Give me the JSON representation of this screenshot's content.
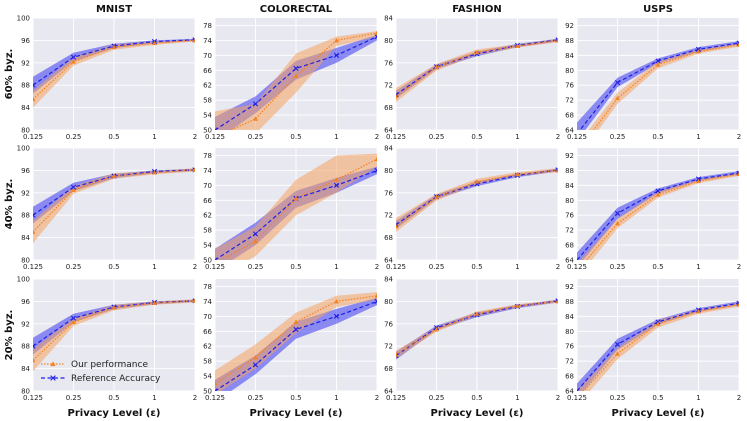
{
  "chart_data": {
    "type": "line",
    "column_titles": [
      "MNIST",
      "COLORECTAL",
      "FASHION",
      "USPS"
    ],
    "row_labels": [
      "60% byz.",
      "40% byz.",
      "20% byz."
    ],
    "xlabel": "Privacy Level (ε)",
    "x_ticks": [
      "0.125",
      "0.25",
      "0.5",
      "1",
      "2"
    ],
    "y_ticks": {
      "MNIST": [
        "80",
        "84",
        "88",
        "92",
        "96",
        "100"
      ],
      "COLORECTAL": [
        "50",
        "54",
        "58",
        "62",
        "66",
        "70",
        "74",
        "78"
      ],
      "FASHION": [
        "64",
        "68",
        "72",
        "76",
        "80",
        "84"
      ],
      "USPS": [
        "64",
        "68",
        "72",
        "76",
        "80",
        "84",
        "88",
        "92"
      ]
    },
    "ylim": {
      "MNIST": [
        80,
        100
      ],
      "COLORECTAL": [
        50,
        80
      ],
      "FASHION": [
        64,
        84
      ],
      "USPS": [
        64,
        94
      ]
    },
    "legend": {
      "ours": "Our performance",
      "ref": "Reference Accuracy",
      "position": "lower-left"
    },
    "colors": {
      "ours": "#f5821f",
      "ours_band": "#f4a261",
      "ref": "#1f1fe6",
      "ref_band": "#3b3bf0",
      "panel_bg": "#e8e8f1",
      "grid": "#ffffff"
    },
    "panels": [
      {
        "row": "60% byz.",
        "dataset": "MNIST",
        "ours": [
          85.5,
          92.2,
          94.8,
          95.5,
          96.0
        ],
        "ours_lo": [
          84.0,
          91.5,
          94.3,
          95.2,
          95.8
        ],
        "ours_hi": [
          87.0,
          93.0,
          95.3,
          95.8,
          96.2
        ],
        "ref": [
          88.0,
          93.0,
          95.0,
          95.8,
          96.1
        ],
        "ref_lo": [
          86.5,
          92.3,
          94.6,
          95.5,
          95.9
        ],
        "ref_hi": [
          89.5,
          93.8,
          95.4,
          96.0,
          96.3
        ]
      },
      {
        "row": "60% byz.",
        "dataset": "COLORECTAL",
        "ours": [
          48.0,
          53.0,
          64.5,
          74.0,
          76.0
        ],
        "ours_lo": [
          44.0,
          49.0,
          60.0,
          72.5,
          75.0
        ],
        "ours_hi": [
          55.0,
          57.0,
          70.5,
          75.0,
          76.5
        ],
        "ref": [
          50.0,
          57.0,
          66.5,
          70.0,
          75.0
        ],
        "ref_lo": [
          47.0,
          54.5,
          63.5,
          68.0,
          74.0
        ],
        "ref_hi": [
          53.5,
          59.0,
          68.5,
          72.0,
          75.5
        ]
      },
      {
        "row": "60% byz.",
        "dataset": "FASHION",
        "ours": [
          70.0,
          75.2,
          77.9,
          79.0,
          80.0
        ],
        "ours_lo": [
          69.0,
          74.6,
          77.4,
          78.7,
          79.7
        ],
        "ours_hi": [
          71.5,
          75.8,
          78.4,
          79.3,
          80.3
        ],
        "ref": [
          70.3,
          75.3,
          77.6,
          79.1,
          80.1
        ],
        "ref_lo": [
          69.6,
          74.9,
          77.2,
          78.8,
          79.8
        ],
        "ref_hi": [
          71.0,
          75.7,
          78.0,
          79.4,
          80.3
        ]
      },
      {
        "row": "60% byz.",
        "dataset": "USPS",
        "ours": [
          58.0,
          72.5,
          81.5,
          85.0,
          86.8
        ],
        "ours_lo": [
          56.0,
          71.0,
          80.5,
          84.5,
          86.3
        ],
        "ours_hi": [
          60.0,
          74.0,
          82.5,
          85.5,
          87.2
        ],
        "ref": [
          63.0,
          76.7,
          82.5,
          85.6,
          87.3
        ],
        "ref_lo": [
          61.0,
          75.5,
          81.8,
          85.0,
          86.9
        ],
        "ref_hi": [
          66.0,
          78.0,
          83.2,
          86.2,
          87.8
        ]
      },
      {
        "row": "40% byz.",
        "dataset": "MNIST",
        "ours": [
          85.0,
          92.5,
          95.0,
          95.6,
          96.1
        ],
        "ours_lo": [
          83.0,
          91.8,
          94.5,
          95.3,
          95.8
        ],
        "ours_hi": [
          87.0,
          93.2,
          95.5,
          95.9,
          96.4
        ],
        "ref": [
          88.0,
          93.0,
          95.0,
          95.8,
          96.1
        ],
        "ref_lo": [
          86.5,
          92.3,
          94.6,
          95.5,
          95.9
        ],
        "ref_hi": [
          89.5,
          93.8,
          95.4,
          96.0,
          96.3
        ]
      },
      {
        "row": "40% byz.",
        "dataset": "COLORECTAL",
        "ours": [
          49.0,
          55.0,
          66.5,
          71.5,
          77.0
        ],
        "ours_lo": [
          45.0,
          51.0,
          62.0,
          68.0,
          75.0
        ],
        "ours_hi": [
          53.0,
          59.0,
          71.5,
          78.0,
          78.5
        ],
        "ref": [
          50.0,
          57.0,
          66.5,
          70.0,
          74.0
        ],
        "ref_lo": [
          47.0,
          54.0,
          64.0,
          68.0,
          73.0
        ],
        "ref_hi": [
          53.0,
          60.0,
          68.5,
          72.0,
          75.0
        ]
      },
      {
        "row": "40% byz.",
        "dataset": "FASHION",
        "ours": [
          70.0,
          75.2,
          78.0,
          79.3,
          80.0
        ],
        "ours_lo": [
          69.0,
          74.6,
          77.5,
          79.0,
          79.7
        ],
        "ours_hi": [
          71.5,
          75.8,
          78.5,
          79.7,
          80.4
        ],
        "ref": [
          70.3,
          75.3,
          77.6,
          79.1,
          80.1
        ],
        "ref_lo": [
          69.6,
          74.9,
          77.2,
          78.8,
          79.8
        ],
        "ref_hi": [
          71.0,
          75.7,
          78.0,
          79.4,
          80.3
        ]
      },
      {
        "row": "40% byz.",
        "dataset": "USPS",
        "ours": [
          61.0,
          73.8,
          81.5,
          85.1,
          87.0
        ],
        "ours_lo": [
          59.0,
          72.5,
          80.7,
          84.6,
          86.5
        ],
        "ours_hi": [
          63.0,
          75.0,
          82.3,
          85.6,
          87.4
        ],
        "ref": [
          64.0,
          76.5,
          82.5,
          85.7,
          87.3
        ],
        "ref_lo": [
          62.0,
          75.0,
          81.8,
          85.2,
          86.9
        ],
        "ref_hi": [
          66.0,
          78.0,
          83.2,
          86.2,
          87.8
        ]
      },
      {
        "row": "20% byz.",
        "dataset": "MNIST",
        "ours": [
          85.5,
          92.3,
          94.9,
          95.7,
          96.1
        ],
        "ours_lo": [
          83.5,
          91.6,
          94.4,
          95.4,
          95.8
        ],
        "ours_hi": [
          87.5,
          93.0,
          95.4,
          96.0,
          96.4
        ],
        "ref": [
          88.0,
          93.0,
          95.0,
          95.8,
          96.1
        ],
        "ref_lo": [
          86.5,
          92.3,
          94.6,
          95.5,
          95.9
        ],
        "ref_hi": [
          89.5,
          93.8,
          95.4,
          96.0,
          96.3
        ]
      },
      {
        "row": "20% byz.",
        "dataset": "COLORECTAL",
        "ours": [
          52.0,
          59.0,
          68.5,
          74.0,
          75.5
        ],
        "ours_lo": [
          49.0,
          56.0,
          65.5,
          72.5,
          74.5
        ],
        "ours_hi": [
          55.5,
          62.5,
          71.0,
          75.5,
          76.5
        ],
        "ref": [
          50.0,
          57.0,
          66.5,
          70.0,
          74.0
        ],
        "ref_lo": [
          47.0,
          54.5,
          64.0,
          68.0,
          73.0
        ],
        "ref_hi": [
          53.0,
          59.5,
          68.5,
          72.0,
          75.0
        ]
      },
      {
        "row": "20% byz.",
        "dataset": "FASHION",
        "ours": [
          70.5,
          75.0,
          77.8,
          79.2,
          80.0
        ],
        "ours_lo": [
          69.8,
          74.6,
          77.4,
          78.9,
          79.8
        ],
        "ours_hi": [
          71.2,
          75.5,
          78.2,
          79.5,
          80.3
        ],
        "ref": [
          70.3,
          75.3,
          77.6,
          79.1,
          80.1
        ],
        "ref_lo": [
          69.6,
          74.9,
          77.2,
          78.8,
          79.8
        ],
        "ref_hi": [
          71.0,
          75.7,
          78.0,
          79.4,
          80.3
        ]
      },
      {
        "row": "20% byz.",
        "dataset": "USPS",
        "ours": [
          62.0,
          74.0,
          82.0,
          85.3,
          87.1
        ],
        "ours_lo": [
          60.0,
          72.5,
          81.0,
          84.7,
          86.6
        ],
        "ours_hi": [
          64.0,
          75.5,
          83.0,
          85.9,
          87.6
        ],
        "ref": [
          64.0,
          76.5,
          82.5,
          85.7,
          87.5
        ],
        "ref_lo": [
          62.0,
          75.0,
          81.8,
          85.2,
          87.0
        ],
        "ref_hi": [
          66.0,
          78.0,
          83.2,
          86.2,
          88.0
        ]
      }
    ]
  }
}
